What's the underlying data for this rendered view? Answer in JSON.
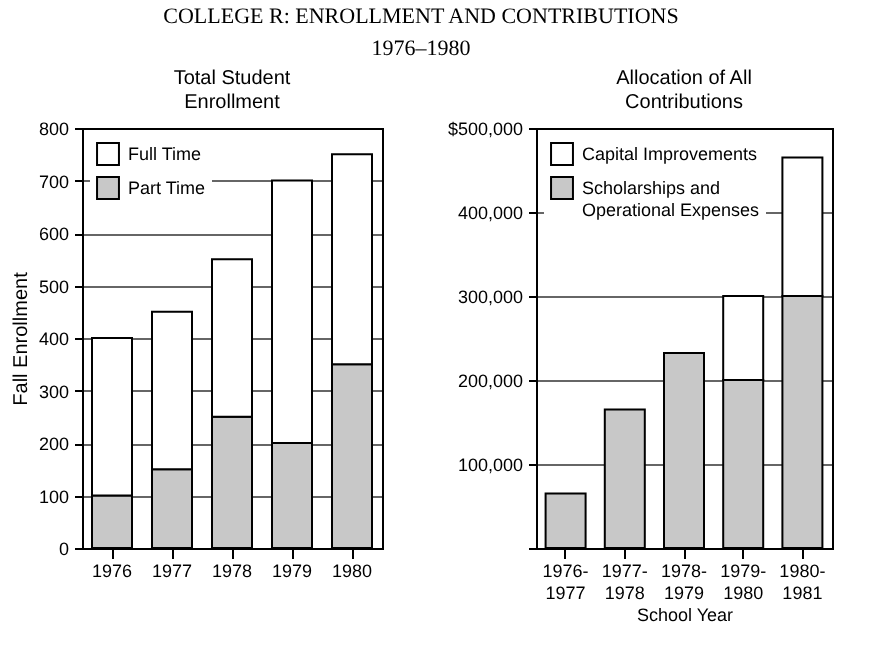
{
  "chart_data": [
    {
      "type": "bar",
      "title": "Total Student Enrollment",
      "ylabel": "Fall Enrollment",
      "stacked": true,
      "annotations": [
        "COLLEGE R: ENROLLMENT AND CONTRIBUTIONS",
        "1976–1980"
      ],
      "categories": [
        "1976",
        "1977",
        "1978",
        "1979",
        "1980"
      ],
      "series": [
        {
          "name": "Part Time",
          "color": "#c8c8c8",
          "values": [
            100,
            150,
            250,
            200,
            350
          ]
        },
        {
          "name": "Full Time",
          "color": "#ffffff",
          "values": [
            300,
            300,
            300,
            500,
            400
          ]
        }
      ],
      "ylim": [
        0,
        800
      ],
      "yticks": [
        0,
        100,
        200,
        300,
        400,
        500,
        600,
        700,
        800
      ],
      "grid": "y",
      "legend": "top left"
    },
    {
      "type": "bar",
      "title": "Allocation of All Contributions",
      "xlabel": "School Year",
      "stacked": true,
      "categories": [
        "1976-1977",
        "1977-1978",
        "1978-1979",
        "1979-1980",
        "1980-1981"
      ],
      "series": [
        {
          "name": "Scholarships and Operational Expenses",
          "color": "#c8c8c8",
          "values": [
            65000,
            165000,
            232000,
            200000,
            300000
          ]
        },
        {
          "name": "Capital Improvements",
          "color": "#ffffff",
          "values": [
            null,
            null,
            null,
            100000,
            165000
          ]
        }
      ],
      "ylim": [
        0,
        500000
      ],
      "yticks": [
        {
          "value": 0,
          "label": null
        },
        {
          "value": 100000,
          "label": "100,000"
        },
        {
          "value": 200000,
          "label": "200,000"
        },
        {
          "value": 300000,
          "label": "300,000"
        },
        {
          "value": 400000,
          "label": "400,000"
        },
        {
          "value": 500000,
          "label": "$500,000"
        }
      ],
      "grid": "y",
      "legend": "top left"
    }
  ]
}
